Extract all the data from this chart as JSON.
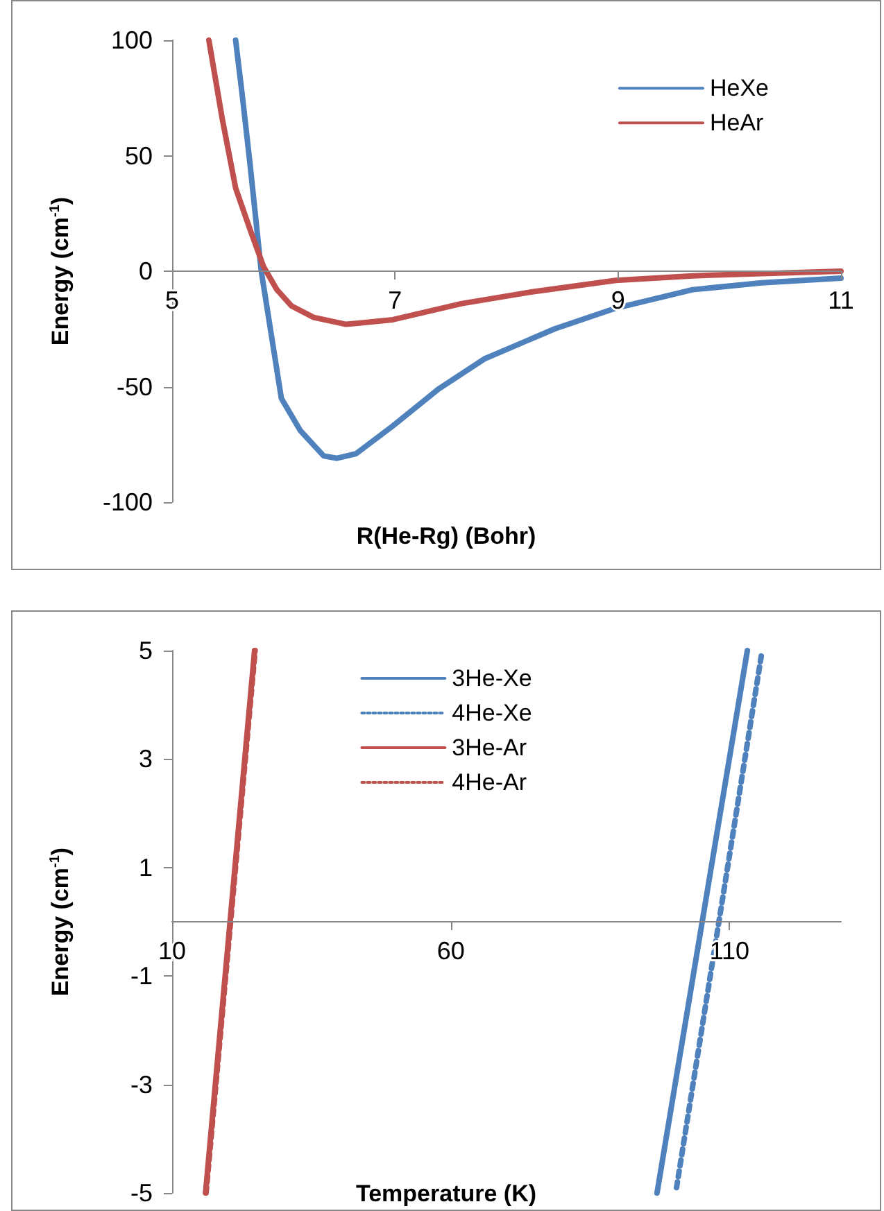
{
  "chart_data": [
    {
      "type": "line",
      "xlabel": "R(He-Rg) (Bohr)",
      "ylabel": "Energy (cm$^{-1}$)",
      "xlim": [
        5,
        11
      ],
      "xticks": [
        5,
        7,
        9,
        11
      ],
      "ylim": [
        -100,
        100
      ],
      "yticks": [
        -100,
        -50,
        0,
        50,
        100
      ],
      "grid": false,
      "legend": "top right",
      "marker": "none",
      "line_style": "solid",
      "series": [
        {
          "name": "HeXe",
          "color": "#4f81bd",
          "x": [
            5.57,
            5.63,
            5.7,
            5.8,
            5.98,
            6.15,
            6.36,
            6.48,
            6.65,
            6.98,
            7.39,
            7.8,
            8.43,
            8.98,
            9.67,
            10.29,
            11
          ],
          "values": [
            100,
            76,
            46,
            0,
            -55,
            -69,
            -80,
            -81,
            -79,
            -67,
            -51,
            -38,
            -25,
            -16,
            -8,
            -5,
            -3
          ]
        },
        {
          "name": "HeAr",
          "color": "#c0504d",
          "x": [
            5.33,
            5.45,
            5.57,
            5.7,
            5.82,
            5.94,
            6.07,
            6.27,
            6.56,
            6.98,
            7.6,
            8.22,
            8.98,
            9.67,
            11
          ],
          "values": [
            100,
            66,
            36,
            18,
            2,
            -8,
            -15,
            -20,
            -23,
            -21,
            -14,
            -9,
            -4,
            -2,
            0
          ]
        }
      ]
    },
    {
      "type": "line",
      "xlabel": "Temperature (K)",
      "ylabel": "Energy (cm$^{-1}$)",
      "xlim": [
        10,
        130
      ],
      "xticks": [
        10,
        60,
        110
      ],
      "ylim": [
        -5,
        5
      ],
      "yticks": [
        -5,
        -3,
        -1,
        1,
        3,
        5
      ],
      "grid": false,
      "legend": "top",
      "marker": "none",
      "series": [
        {
          "name": "3He-Xe",
          "color": "#4f81bd",
          "line_style": "solid",
          "x": [
            97,
            113.2
          ],
          "values": [
            -5,
            5
          ]
        },
        {
          "name": "4He-Xe",
          "color": "#4f81bd",
          "line_style": "dotted",
          "x": [
            100.5,
            115.7
          ],
          "values": [
            -4.9,
            4.9
          ]
        },
        {
          "name": "3He-Ar",
          "color": "#c0504d",
          "line_style": "solid",
          "x": [
            16,
            24.8
          ],
          "values": [
            -5,
            5
          ]
        },
        {
          "name": "4He-Ar",
          "color": "#c0504d",
          "line_style": "dotted",
          "x": [
            16.1,
            24.9
          ],
          "values": [
            -5,
            5
          ]
        }
      ]
    }
  ]
}
